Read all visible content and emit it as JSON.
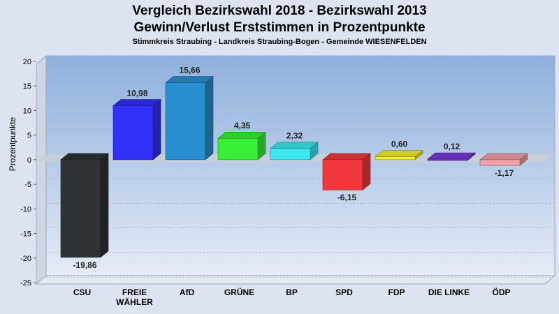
{
  "header": {
    "title_line1": "Vergleich Bezirkswahl 2018 - Bezirkswahl 2013",
    "title_line2": "Gewinn/Verlust Erststimmen in Prozentpunkte",
    "subtitle": "Stimmkreis Straubing - Landkreis Straubing-Bogen - Gemeinde WIESENFELDEN"
  },
  "chart_data": {
    "type": "bar",
    "title": "Vergleich Bezirkswahl 2018 - Bezirkswahl 2013 / Gewinn/Verlust Erststimmen in Prozentpunkte",
    "subtitle": "Stimmkreis Straubing - Landkreis Straubing-Bogen - Gemeinde WIESENFELDEN",
    "xlabel": "",
    "ylabel": "Prozentpunkte",
    "ylim": [
      -25,
      20
    ],
    "yticks": [
      20,
      15,
      10,
      5,
      0,
      -5,
      -10,
      -15,
      -20,
      -25
    ],
    "grid": true,
    "categories": [
      "CSU",
      "FREIE WÄHLER",
      "AfD",
      "GRÜNE",
      "BP",
      "SPD",
      "FDP",
      "DIE LINKE",
      "ÖDP"
    ],
    "category_lines": [
      [
        "CSU"
      ],
      [
        "FREIE",
        "WÄHLER"
      ],
      [
        "AfD"
      ],
      [
        "GRÜNE"
      ],
      [
        "BP"
      ],
      [
        "SPD"
      ],
      [
        "FDP"
      ],
      [
        "DIE LINKE"
      ],
      [
        "ÖDP"
      ]
    ],
    "values": [
      -19.86,
      10.98,
      15.66,
      4.35,
      2.32,
      -6.15,
      0.6,
      0.12,
      -1.17
    ],
    "value_labels": [
      "-19,86",
      "10,98",
      "15,66",
      "4,35",
      "2,32",
      "-6,15",
      "0,60",
      "0,12",
      "-1,17"
    ],
    "colors": [
      "#2f3236",
      "#3030f8",
      "#2a8fd0",
      "#38ef38",
      "#3ce8f0",
      "#f0383c",
      "#f2ee2e",
      "#7a38d8",
      "#f2a0a8"
    ]
  }
}
